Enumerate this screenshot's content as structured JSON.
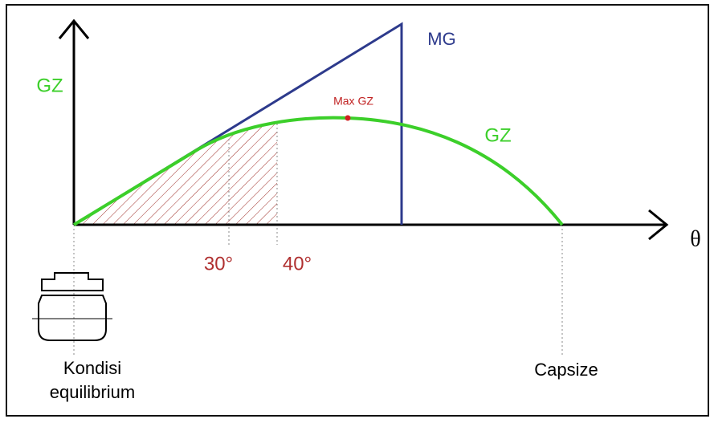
{
  "axis_label_y": "GZ",
  "axis_label_x": "θ",
  "mg_label": "MG",
  "max_gz_label": "Max GZ",
  "gz_curve_label": "GZ",
  "angle_labels": [
    "30°",
    "40°"
  ],
  "left_caption": [
    "Kondisi",
    "equilibrium"
  ],
  "right_caption": "Capsize"
}
